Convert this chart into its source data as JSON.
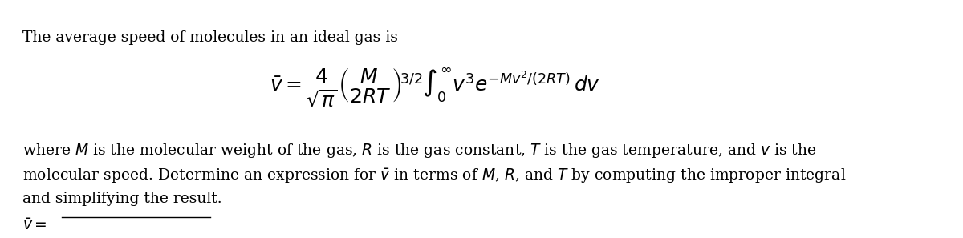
{
  "background_color": "#ffffff",
  "text_color": "#000000",
  "line1": "The average speed of molecules in an ideal gas is",
  "line3_part1": "where $M$ is the molecular weight of the gas, $R$ is the gas constant, $T$ is the gas temperature, and $v$ is the",
  "line3_part2": "molecular speed. Determine an expression for $\\bar{v}$ in terms of $M$, $R$, and $T$ by computing the improper integral",
  "line3_part3": "and simplifying the result.",
  "answer_label": "$\\bar{v} =$",
  "fig_width": 12.0,
  "fig_height": 2.97,
  "dpi": 100
}
